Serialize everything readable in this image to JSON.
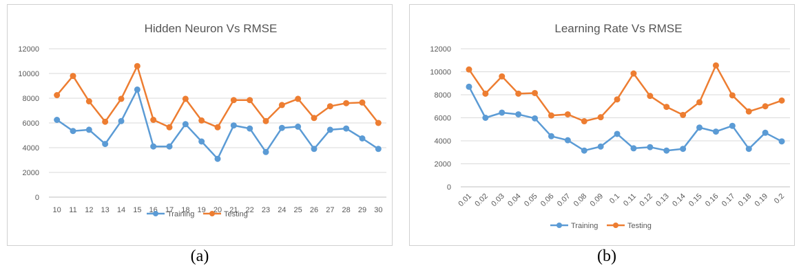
{
  "colors": {
    "training": "#5b9bd5",
    "testing": "#ed7d31",
    "grid": "#d9d9d9"
  },
  "captions": {
    "a": "(a)",
    "b": "(b)"
  },
  "chart_data": [
    {
      "type": "line",
      "title": "Hidden Neuron Vs RMSE",
      "xlabel": "",
      "ylabel": "",
      "categories": [
        "10",
        "11",
        "12",
        "13",
        "14",
        "15",
        "16",
        "17",
        "18",
        "19",
        "20",
        "21",
        "22",
        "23",
        "24",
        "25",
        "26",
        "27",
        "28",
        "29",
        "30"
      ],
      "yticks": [
        "0",
        "2000",
        "4000",
        "6000",
        "8000",
        "10000",
        "12000"
      ],
      "ylim": [
        0,
        12000
      ],
      "grid": true,
      "legend_position": "bottom",
      "series": [
        {
          "name": "Training",
          "values": [
            6250,
            5350,
            5450,
            4300,
            6150,
            8700,
            4100,
            4100,
            5900,
            4500,
            3100,
            5800,
            5550,
            3650,
            5600,
            5700,
            3900,
            5450,
            5550,
            4750,
            3900
          ]
        },
        {
          "name": "Testing",
          "values": [
            8250,
            9800,
            7750,
            6100,
            7950,
            10600,
            6250,
            5650,
            7950,
            6200,
            5650,
            7850,
            7850,
            6150,
            7450,
            7950,
            6400,
            7350,
            7600,
            7650,
            6000
          ]
        }
      ]
    },
    {
      "type": "line",
      "title": "Learning Rate Vs RMSE",
      "xlabel": "",
      "ylabel": "",
      "categories": [
        "0.01",
        "0.02",
        "0.03",
        "0.04",
        "0.05",
        "0.06",
        "0.07",
        "0.08",
        "0.09",
        "0.1",
        "0.11",
        "0.12",
        "0.13",
        "0.14",
        "0.15",
        "0.16",
        "0.17",
        "0.18",
        "0.19",
        "0.2"
      ],
      "yticks": [
        "0",
        "2000",
        "4000",
        "6000",
        "8000",
        "10000",
        "12000"
      ],
      "ylim": [
        0,
        12000
      ],
      "grid": true,
      "legend_position": "bottom",
      "series": [
        {
          "name": "Training",
          "values": [
            8700,
            6000,
            6450,
            6300,
            5950,
            4400,
            4050,
            3150,
            3500,
            4600,
            3350,
            3450,
            3150,
            3300,
            5150,
            4800,
            5300,
            3300,
            4700,
            3950
          ]
        },
        {
          "name": "Testing",
          "values": [
            10200,
            8100,
            9600,
            8100,
            8150,
            6200,
            6300,
            5700,
            6050,
            7600,
            9850,
            7900,
            6950,
            6250,
            7350,
            10550,
            7950,
            6550,
            7000,
            7500
          ]
        }
      ]
    }
  ]
}
